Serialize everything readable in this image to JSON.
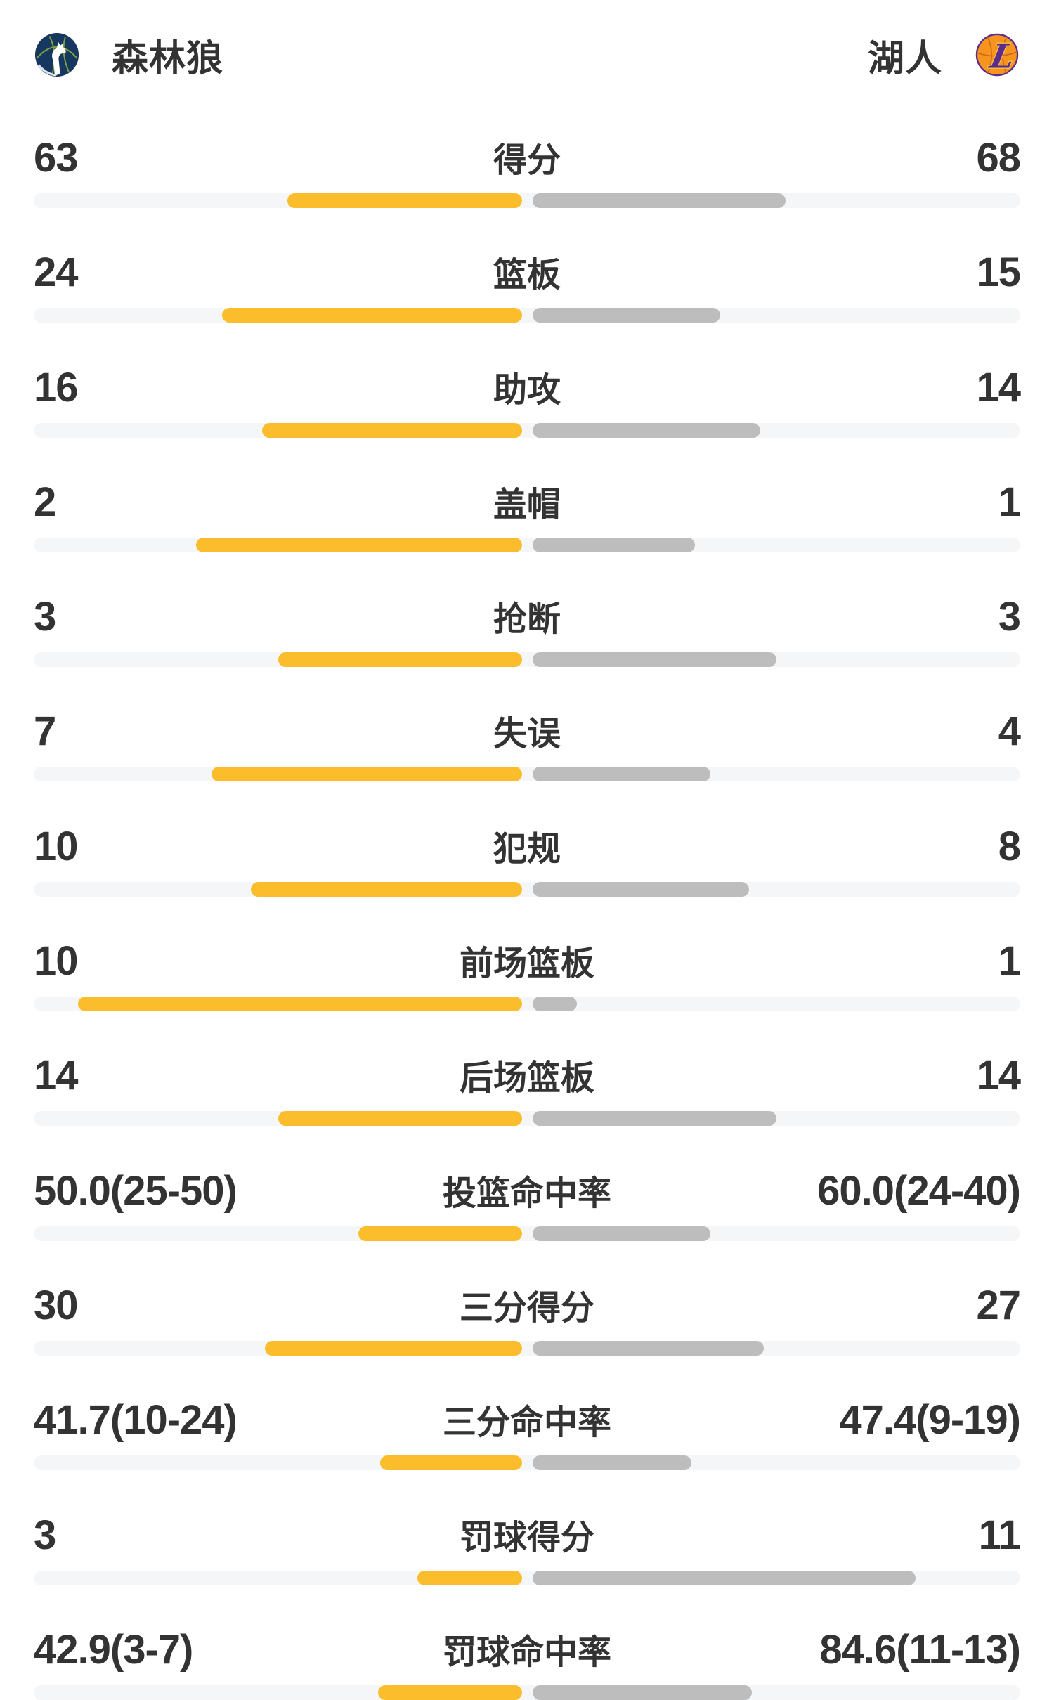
{
  "header": {
    "home": {
      "name": "森林狼",
      "logo": "timberwolves-logo"
    },
    "away": {
      "name": "湖人",
      "logo": "lakers-logo"
    }
  },
  "colors": {
    "home_bar": "#FBBD2B",
    "away_bar": "#BDBDBD",
    "track": "#F4F6F8",
    "text": "#333333",
    "wolves_navy": "#16375F",
    "wolves_green": "#7FA33C",
    "lakers_orange": "#F7941E",
    "lakers_purple": "#5B2B8E",
    "lakers_gold": "#F3C145"
  },
  "stats": {
    "rows": [
      {
        "label": "得分",
        "home": "63",
        "away": "68",
        "home_bar_pct": 48.1,
        "away_bar_pct": 51.9
      },
      {
        "label": "篮板",
        "home": "24",
        "away": "15",
        "home_bar_pct": 61.5,
        "away_bar_pct": 38.5
      },
      {
        "label": "助攻",
        "home": "16",
        "away": "14",
        "home_bar_pct": 53.3,
        "away_bar_pct": 46.7
      },
      {
        "label": "盖帽",
        "home": "2",
        "away": "1",
        "home_bar_pct": 66.7,
        "away_bar_pct": 33.3
      },
      {
        "label": "抢断",
        "home": "3",
        "away": "3",
        "home_bar_pct": 50.0,
        "away_bar_pct": 50.0
      },
      {
        "label": "失误",
        "home": "7",
        "away": "4",
        "home_bar_pct": 63.6,
        "away_bar_pct": 36.4
      },
      {
        "label": "犯规",
        "home": "10",
        "away": "8",
        "home_bar_pct": 55.6,
        "away_bar_pct": 44.4
      },
      {
        "label": "前场篮板",
        "home": "10",
        "away": "1",
        "home_bar_pct": 90.9,
        "away_bar_pct": 9.1
      },
      {
        "label": "后场篮板",
        "home": "14",
        "away": "14",
        "home_bar_pct": 50.0,
        "away_bar_pct": 50.0
      },
      {
        "label": "投篮命中率",
        "home": "50.0(25-50)",
        "away": "60.0(24-40)",
        "home_bar_pct": 33.5,
        "away_bar_pct": 36.5
      },
      {
        "label": "三分得分",
        "home": "30",
        "away": "27",
        "home_bar_pct": 52.6,
        "away_bar_pct": 47.4
      },
      {
        "label": "三分命中率",
        "home": "41.7(10-24)",
        "away": "47.4(9-19)",
        "home_bar_pct": 29.0,
        "away_bar_pct": 32.5
      },
      {
        "label": "罚球得分",
        "home": "3",
        "away": "11",
        "home_bar_pct": 21.4,
        "away_bar_pct": 78.6
      },
      {
        "label": "罚球命中率",
        "home": "42.9(3-7)",
        "away": "84.6(11-13)",
        "home_bar_pct": 29.5,
        "away_bar_pct": 45.0
      }
    ]
  },
  "chart_data": {
    "type": "bar",
    "orientation": "horizontal-paired-from-center",
    "categories": [
      "得分",
      "篮板",
      "助攻",
      "盖帽",
      "抢断",
      "失误",
      "犯规",
      "前场篮板",
      "后场篮板",
      "投篮命中率",
      "三分得分",
      "三分命中率",
      "罚球得分",
      "罚球命中率"
    ],
    "series": [
      {
        "name": "森林狼",
        "color": "#FBBD2B",
        "values": [
          "63",
          "24",
          "16",
          "2",
          "3",
          "7",
          "10",
          "10",
          "14",
          "50.0(25-50)",
          "30",
          "41.7(10-24)",
          "3",
          "42.9(3-7)"
        ]
      },
      {
        "name": "湖人",
        "color": "#BDBDBD",
        "values": [
          "68",
          "15",
          "14",
          "1",
          "3",
          "4",
          "8",
          "1",
          "14",
          "60.0(24-40)",
          "27",
          "47.4(9-19)",
          "11",
          "84.6(11-13)"
        ]
      }
    ],
    "legend_position": "top-header"
  }
}
